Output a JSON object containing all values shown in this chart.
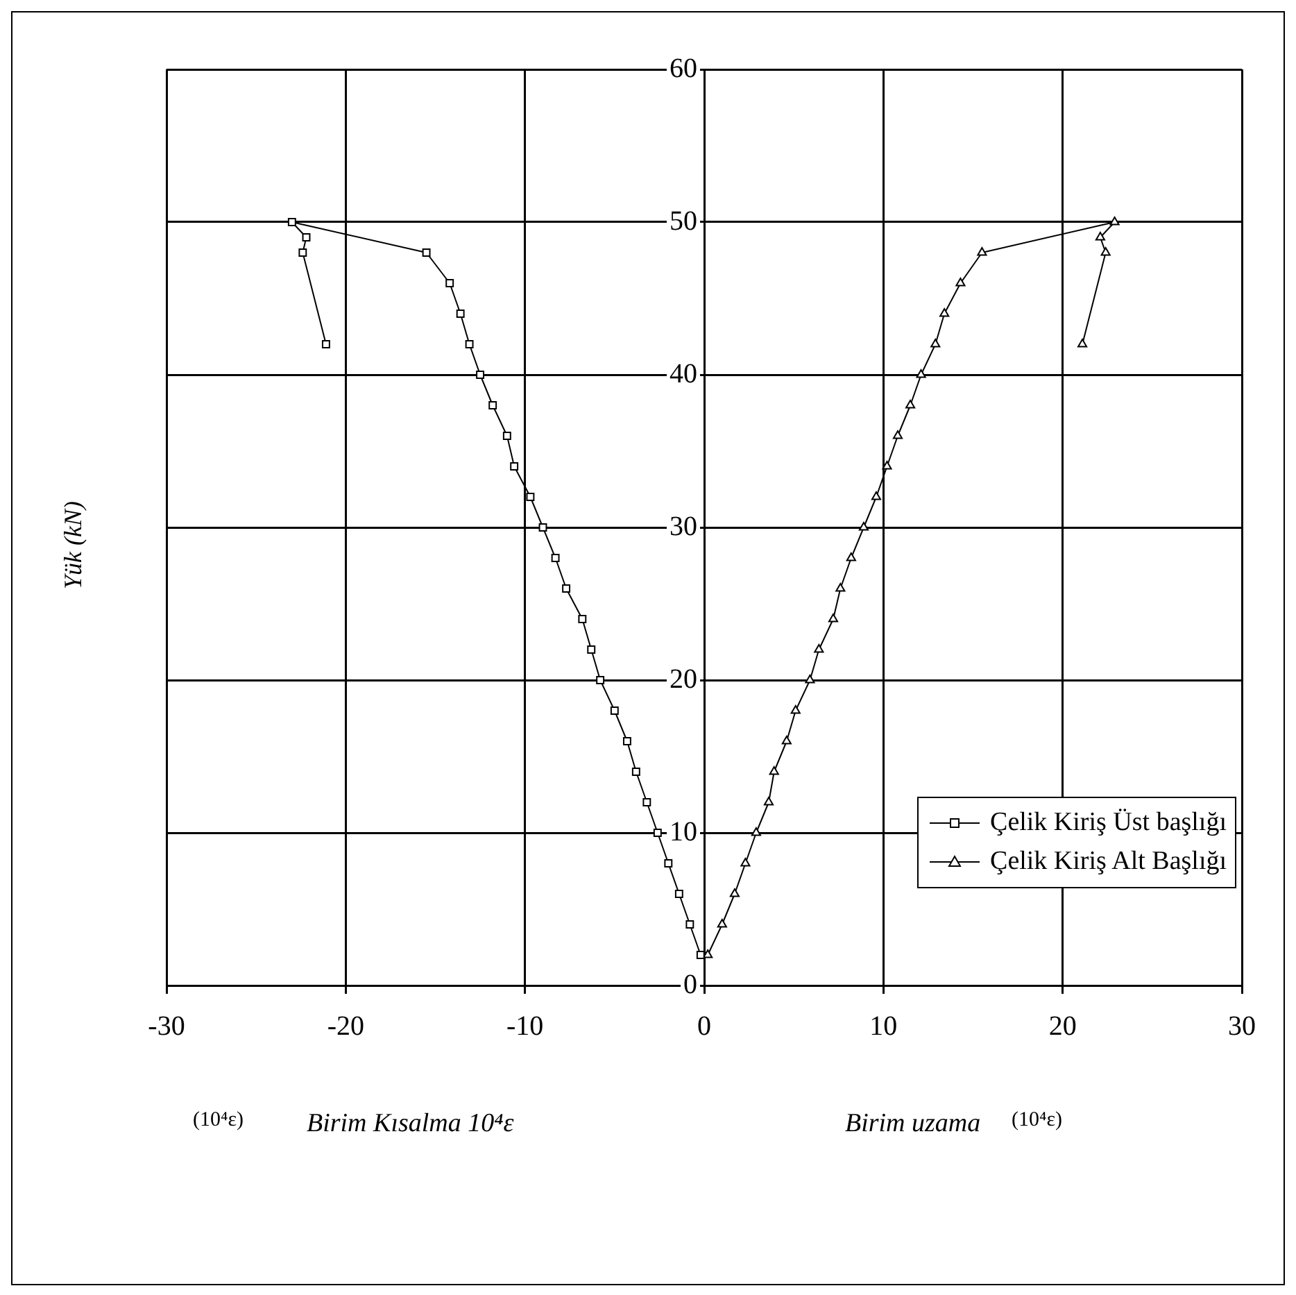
{
  "chart_data": {
    "type": "line",
    "ylabel": "Yük (kN)",
    "annotations": [
      "(10⁴ε)",
      "Birim Kısalma 10⁴ε",
      "Birim uzama",
      "(10⁴ε)"
    ],
    "series": [
      {
        "name": "Çelik Kiriş Üst başlığı",
        "color": "#000000",
        "marker": "square",
        "x": [
          -0.2,
          -0.8,
          -1.4,
          -2.0,
          -2.6,
          -3.2,
          -3.8,
          -4.3,
          -5.0,
          -5.8,
          -6.3,
          -6.8,
          -7.7,
          -8.3,
          -9.0,
          -9.7,
          -10.6,
          -11.0,
          -11.8,
          -12.5,
          -13.1,
          -13.6,
          -14.2,
          -15.5,
          -23.0,
          -22.2,
          -22.4,
          -21.1
        ],
        "values": [
          2,
          4,
          6,
          8,
          10,
          12,
          14,
          16,
          18,
          20,
          22,
          24,
          26,
          28,
          30,
          32,
          34,
          36,
          38,
          40,
          42,
          44,
          46,
          48,
          50,
          49,
          48,
          42
        ]
      },
      {
        "name": "Çelik Kiriş Alt Başlığı",
        "color": "#000000",
        "marker": "triangle",
        "x": [
          0.2,
          1.0,
          1.7,
          2.3,
          2.9,
          3.6,
          3.9,
          4.6,
          5.1,
          5.9,
          6.4,
          7.2,
          7.6,
          8.2,
          8.9,
          9.6,
          10.2,
          10.8,
          11.5,
          12.1,
          12.9,
          13.4,
          14.3,
          15.5,
          22.9,
          22.1,
          22.4,
          21.1
        ],
        "values": [
          2,
          4,
          6,
          8,
          10,
          12,
          14,
          16,
          18,
          20,
          22,
          24,
          26,
          28,
          30,
          32,
          34,
          36,
          38,
          40,
          42,
          44,
          46,
          48,
          50,
          49,
          48,
          42
        ]
      }
    ],
    "xlim": [
      -30,
      30
    ],
    "xticks": [
      -30,
      -20,
      -10,
      0,
      10,
      20,
      30
    ],
    "ylim": [
      0,
      60
    ],
    "yticks": [
      0,
      10,
      20,
      30,
      40,
      50,
      60
    ],
    "grid": true,
    "legend": "bottom right",
    "line_style": "solid"
  }
}
